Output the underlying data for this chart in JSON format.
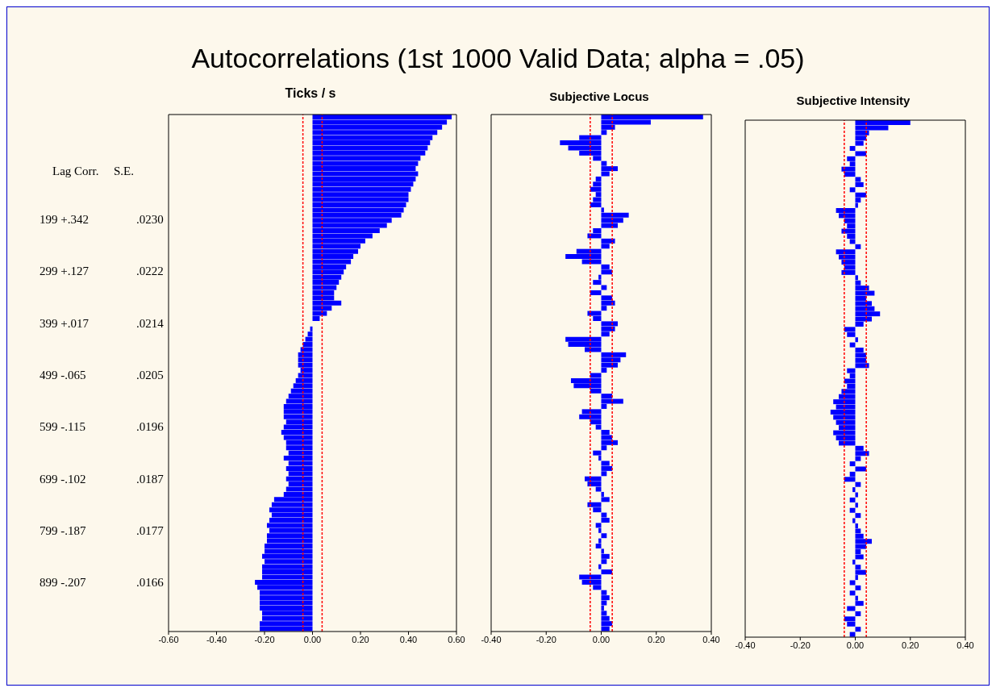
{
  "chart_data": [
    {
      "type": "bar",
      "orientation": "horizontal",
      "title": "Autocorrelations (1st 1000 Valid Data; alpha = .05)",
      "subtitle": "Ticks / s",
      "categories": [
        null,
        null,
        null,
        null,
        null,
        null,
        null,
        null,
        null,
        null,
        null,
        null,
        null,
        null,
        null,
        null,
        null,
        null,
        null,
        null,
        null,
        null,
        null,
        null,
        null,
        null,
        null,
        null,
        null,
        null,
        null,
        null,
        null,
        null,
        null,
        null,
        null,
        null,
        null,
        null,
        null,
        null,
        null,
        null,
        null,
        null,
        null,
        null,
        null,
        null,
        null,
        null,
        null,
        null,
        null,
        null,
        null,
        null,
        null,
        null,
        null,
        null,
        null,
        null,
        null,
        null,
        null,
        null,
        null,
        null,
        null,
        null,
        null,
        null,
        null,
        null,
        null,
        null,
        null,
        null,
        null,
        null,
        null,
        null,
        null,
        null,
        null,
        null,
        null,
        null,
        null,
        null,
        null,
        null,
        null,
        null,
        null,
        null,
        null,
        null
      ],
      "values": [
        0.58,
        0.56,
        0.54,
        0.52,
        0.5,
        0.49,
        0.48,
        0.47,
        0.45,
        0.44,
        0.43,
        0.44,
        0.43,
        0.42,
        0.41,
        0.4,
        0.4,
        0.39,
        0.38,
        0.37,
        0.33,
        0.31,
        0.28,
        0.25,
        0.22,
        0.2,
        0.19,
        0.17,
        0.16,
        0.14,
        0.13,
        0.12,
        0.11,
        0.1,
        0.09,
        0.09,
        0.12,
        0.08,
        0.06,
        0.03,
        0.0,
        -0.01,
        -0.02,
        -0.03,
        -0.04,
        -0.05,
        -0.06,
        -0.06,
        -0.06,
        -0.05,
        -0.06,
        -0.07,
        -0.08,
        -0.09,
        -0.1,
        -0.11,
        -0.12,
        -0.12,
        -0.12,
        -0.11,
        -0.12,
        -0.13,
        -0.12,
        -0.11,
        -0.11,
        -0.1,
        -0.12,
        -0.1,
        -0.11,
        -0.1,
        -0.11,
        -0.1,
        -0.11,
        -0.12,
        -0.16,
        -0.17,
        -0.18,
        -0.17,
        -0.18,
        -0.19,
        -0.18,
        -0.19,
        -0.19,
        -0.2,
        -0.2,
        -0.21,
        -0.2,
        -0.21,
        -0.21,
        -0.21,
        -0.24,
        -0.23,
        -0.22,
        -0.22,
        -0.22,
        -0.22,
        -0.21,
        -0.21,
        -0.22,
        -0.22
      ],
      "color": "#0000ff",
      "xlim": [
        -0.6,
        0.6
      ],
      "xticks": [
        {
          "value": -0.6,
          "label": "-0.60"
        },
        {
          "value": -0.4,
          "label": "-0.40"
        },
        {
          "value": -0.2,
          "label": "-0.20"
        },
        {
          "value": 0,
          "label": "0.00"
        },
        {
          "value": 0.2,
          "label": "0.20"
        },
        {
          "value": 0.4,
          "label": "0.40"
        },
        {
          "value": 0.6,
          "label": "0.60"
        }
      ],
      "tick_labels": "x",
      "grid": false,
      "legend": false,
      "ref_lines": [
        {
          "axis": "x",
          "value": -0.04,
          "color": "#ff0000",
          "line_style": "dashed"
        },
        {
          "axis": "x",
          "value": 0.04,
          "color": "#ff0000",
          "line_style": "dashed"
        }
      ],
      "annotations": [
        "Lag Corr.",
        "S.E.",
        "199 +.342",
        ".0230",
        "299 +.127",
        ".0222",
        "399 +.017",
        ".0214",
        "499 -.065",
        ".0205",
        "599 -.115",
        ".0196",
        "699 -.102",
        ".0187",
        "799 -.187",
        ".0177",
        "899 -.207",
        ".0166"
      ]
    },
    {
      "type": "bar",
      "orientation": "horizontal",
      "title": "Subjective Locus",
      "categories": [
        null,
        null,
        null,
        null,
        null,
        null,
        null,
        null,
        null,
        null,
        null,
        null,
        null,
        null,
        null,
        null,
        null,
        null,
        null,
        null,
        null,
        null,
        null,
        null,
        null,
        null,
        null,
        null,
        null,
        null,
        null,
        null,
        null,
        null,
        null,
        null,
        null,
        null,
        null,
        null,
        null,
        null,
        null,
        null,
        null,
        null,
        null,
        null,
        null,
        null,
        null,
        null,
        null,
        null,
        null,
        null,
        null,
        null,
        null,
        null,
        null,
        null,
        null,
        null,
        null,
        null,
        null,
        null,
        null,
        null,
        null,
        null,
        null,
        null,
        null,
        null,
        null,
        null,
        null,
        null,
        null,
        null,
        null,
        null,
        null,
        null,
        null,
        null,
        null,
        null,
        null,
        null,
        null,
        null,
        null,
        null,
        null,
        null,
        null,
        null
      ],
      "values": [
        0.37,
        0.18,
        0.05,
        0.02,
        -0.08,
        -0.15,
        -0.12,
        -0.08,
        -0.03,
        0.02,
        0.06,
        0.03,
        -0.02,
        -0.03,
        -0.04,
        -0.02,
        -0.03,
        -0.04,
        0.01,
        0.1,
        0.08,
        0.06,
        -0.03,
        -0.05,
        0.05,
        0.03,
        -0.09,
        -0.13,
        -0.07,
        0.03,
        0.04,
        -0.01,
        -0.03,
        0.02,
        -0.04,
        0.04,
        0.05,
        0.02,
        -0.05,
        -0.03,
        0.06,
        0.05,
        0.03,
        -0.13,
        -0.12,
        -0.06,
        0.09,
        0.07,
        0.06,
        0.02,
        -0.04,
        -0.11,
        -0.1,
        -0.04,
        0.04,
        0.08,
        0.02,
        -0.07,
        -0.08,
        -0.04,
        -0.02,
        0.03,
        0.04,
        0.06,
        0.02,
        -0.03,
        -0.01,
        0.03,
        0.04,
        0.02,
        -0.06,
        -0.05,
        -0.02,
        0.01,
        0.03,
        -0.05,
        -0.03,
        0.02,
        0.03,
        -0.02,
        -0.01,
        0.02,
        -0.01,
        -0.02,
        0.01,
        0.03,
        0.02,
        -0.01,
        0.04,
        -0.08,
        -0.07,
        -0.03,
        0.02,
        0.03,
        0.02,
        0.01,
        0.02,
        0.03,
        0.04,
        0.03
      ],
      "color": "#0000ff",
      "xlim": [
        -0.4,
        0.4
      ],
      "xticks": [
        {
          "value": -0.4,
          "label": "-0.40"
        },
        {
          "value": -0.2,
          "label": "-0.20"
        },
        {
          "value": 0,
          "label": "0.00"
        },
        {
          "value": 0.2,
          "label": "0.20"
        },
        {
          "value": 0.4,
          "label": "0.40"
        }
      ],
      "tick_labels": "x",
      "grid": false,
      "legend": false,
      "ref_lines": [
        {
          "axis": "x",
          "value": -0.04,
          "color": "#ff0000",
          "line_style": "dashed"
        },
        {
          "axis": "x",
          "value": 0.04,
          "color": "#ff0000",
          "line_style": "dashed"
        }
      ]
    },
    {
      "type": "bar",
      "orientation": "horizontal",
      "title": "Subjective Intensity",
      "categories": [
        null,
        null,
        null,
        null,
        null,
        null,
        null,
        null,
        null,
        null,
        null,
        null,
        null,
        null,
        null,
        null,
        null,
        null,
        null,
        null,
        null,
        null,
        null,
        null,
        null,
        null,
        null,
        null,
        null,
        null,
        null,
        null,
        null,
        null,
        null,
        null,
        null,
        null,
        null,
        null,
        null,
        null,
        null,
        null,
        null,
        null,
        null,
        null,
        null,
        null,
        null,
        null,
        null,
        null,
        null,
        null,
        null,
        null,
        null,
        null,
        null,
        null,
        null,
        null,
        null,
        null,
        null,
        null,
        null,
        null,
        null,
        null,
        null,
        null,
        null,
        null,
        null,
        null,
        null,
        null,
        null,
        null,
        null,
        null,
        null,
        null,
        null,
        null,
        null,
        null,
        null,
        null,
        null,
        null,
        null,
        null,
        null,
        null,
        null,
        null
      ],
      "values": [
        0.2,
        0.12,
        0.05,
        0.04,
        0.03,
        -0.02,
        0.04,
        -0.03,
        -0.02,
        -0.05,
        -0.04,
        0.02,
        0.03,
        -0.02,
        0.04,
        0.02,
        0.01,
        -0.07,
        -0.06,
        -0.04,
        -0.03,
        -0.05,
        -0.03,
        -0.02,
        0.02,
        -0.07,
        -0.06,
        -0.05,
        -0.04,
        -0.05,
        0.01,
        0.02,
        0.05,
        0.07,
        0.04,
        0.06,
        0.07,
        0.09,
        0.06,
        0.03,
        -0.04,
        -0.03,
        0.01,
        -0.02,
        0.03,
        0.04,
        0.04,
        0.05,
        -0.03,
        -0.02,
        -0.04,
        -0.03,
        -0.05,
        -0.06,
        -0.08,
        -0.07,
        -0.09,
        -0.08,
        -0.07,
        -0.06,
        -0.08,
        -0.07,
        -0.06,
        0.03,
        0.05,
        0.02,
        -0.02,
        0.04,
        -0.02,
        -0.04,
        0.02,
        -0.01,
        0.01,
        -0.02,
        0.01,
        -0.02,
        0.02,
        -0.01,
        0.01,
        0.02,
        0.03,
        0.06,
        0.04,
        0.02,
        0.03,
        -0.01,
        0.02,
        0.04,
        0.01,
        -0.02,
        0.02,
        -0.02,
        0.01,
        0.03,
        -0.03,
        0.02,
        -0.04,
        -0.03,
        0.02,
        -0.02
      ],
      "color": "#0000ff",
      "xlim": [
        -0.4,
        0.4
      ],
      "xticks": [
        {
          "value": -0.4,
          "label": "-0.40"
        },
        {
          "value": -0.2,
          "label": "-0.20"
        },
        {
          "value": 0,
          "label": "0.00"
        },
        {
          "value": 0.2,
          "label": "0.20"
        },
        {
          "value": 0.4,
          "label": "0.40"
        }
      ],
      "tick_labels": "x",
      "grid": false,
      "legend": false,
      "ref_lines": [
        {
          "axis": "x",
          "value": -0.04,
          "color": "#ff0000",
          "line_style": "dashed"
        },
        {
          "axis": "x",
          "value": 0.04,
          "color": "#ff0000",
          "line_style": "dashed"
        }
      ]
    }
  ]
}
